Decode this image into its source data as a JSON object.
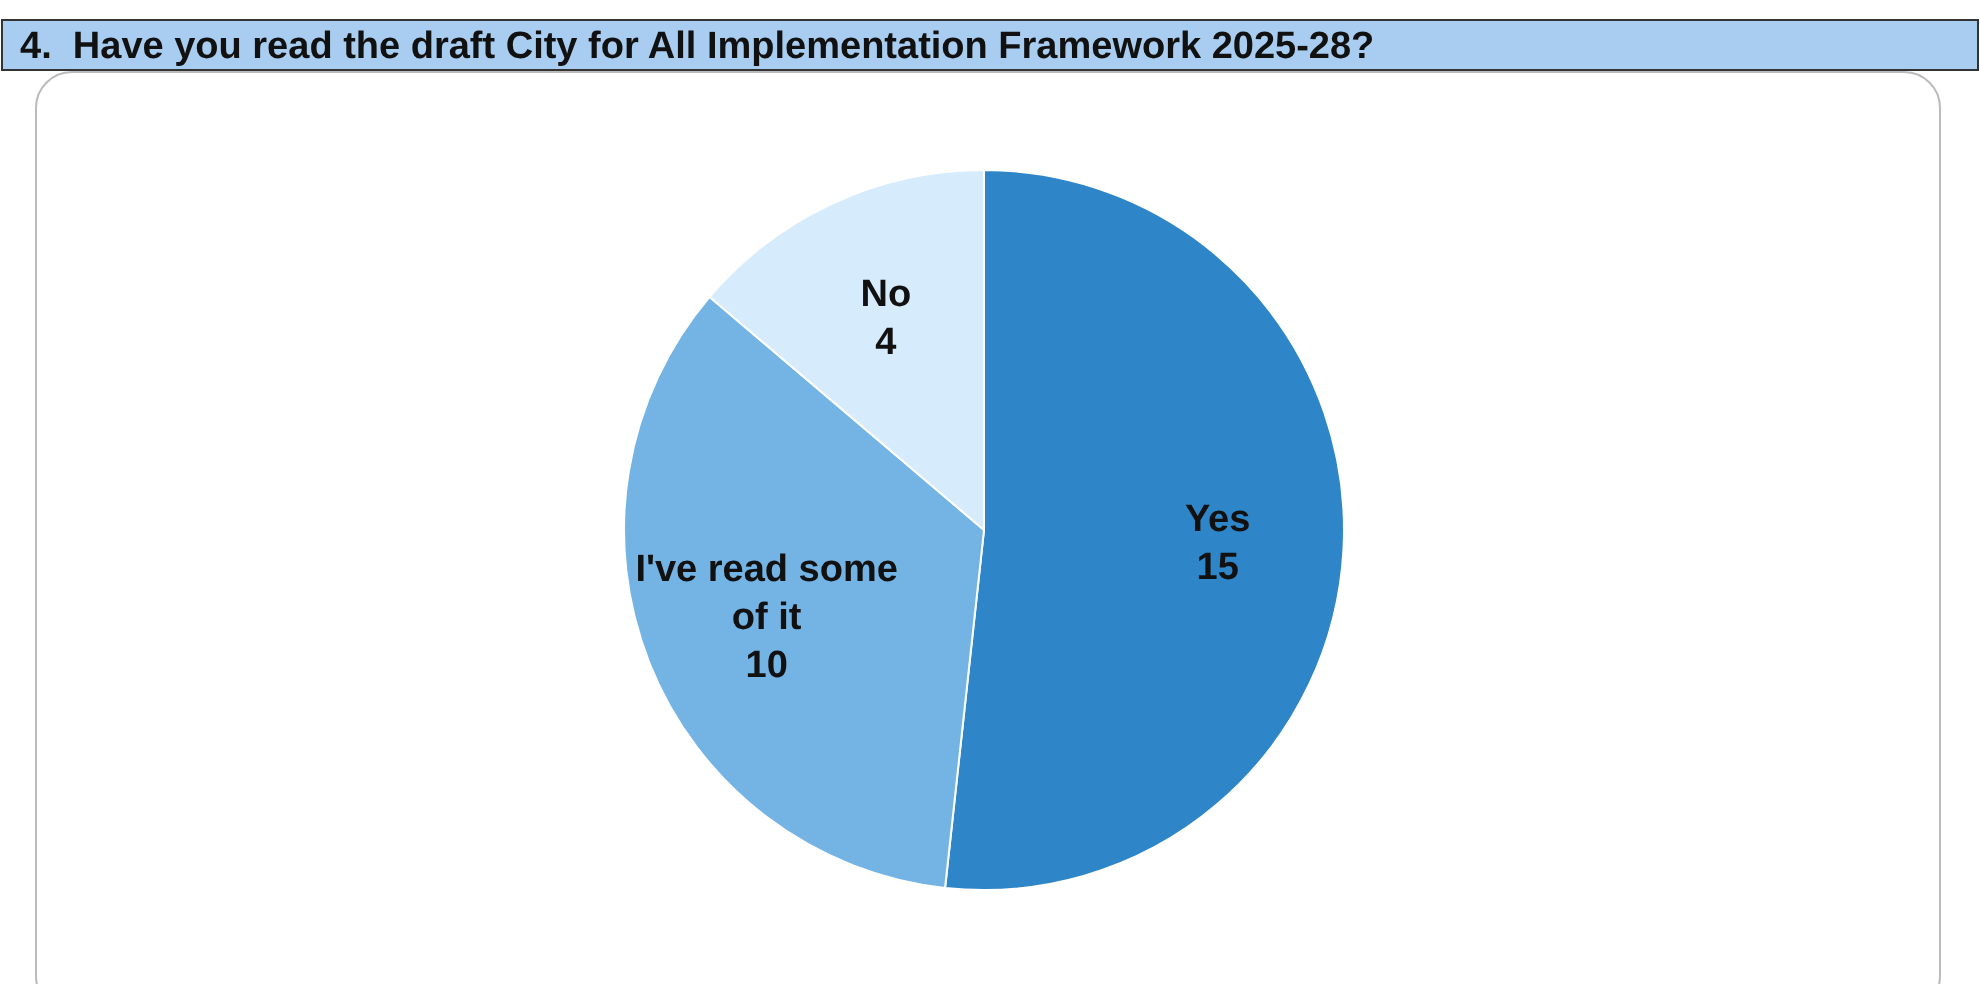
{
  "chart_data": {
    "type": "pie",
    "title": "4.  Have you read the draft City for All Implementation Framework 2025-28?",
    "categories": [
      "Yes",
      "I've read some of it",
      "No"
    ],
    "values": [
      15,
      10,
      4
    ],
    "colors": [
      "#2e86c8",
      "#74b4e4",
      "#d6ebfb"
    ],
    "data_labels": true,
    "legend": false
  }
}
